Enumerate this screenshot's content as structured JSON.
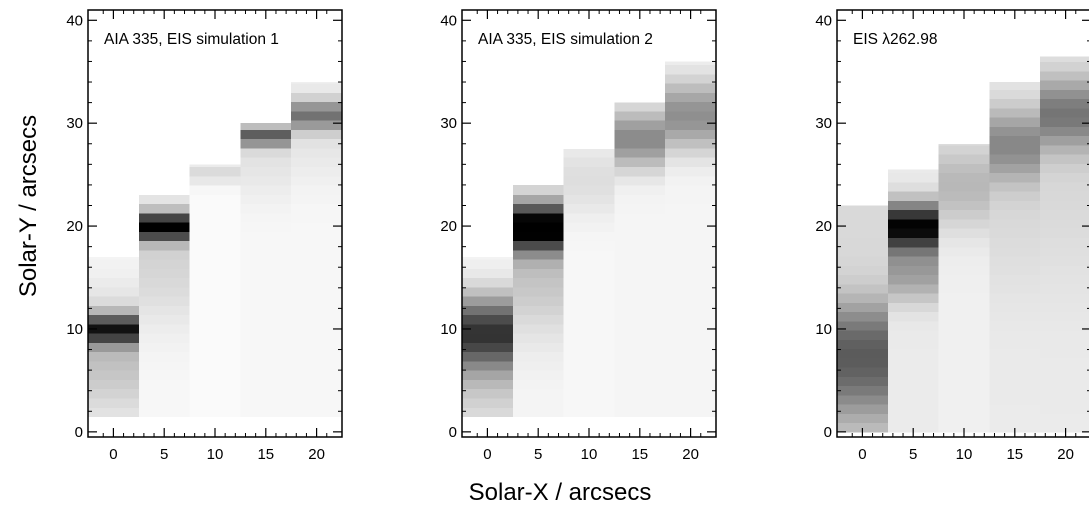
{
  "figure": {
    "xlabel": "Solar-X / arcsecs",
    "ylabel": "Solar-Y / arcsecs"
  },
  "chart_data": [
    {
      "type": "heatmap",
      "title": "AIA 335, EIS simulation 1",
      "x_ticks": [
        0,
        5,
        10,
        15,
        20
      ],
      "y_ticks": [
        0,
        10,
        20,
        30,
        40
      ],
      "xlim": [
        -2.5,
        22.5
      ],
      "ylim": [
        -0.5,
        41
      ],
      "colormap": "white-to-black",
      "columns": [
        {
          "x": 0,
          "y_start": 1.5,
          "y_end": 17,
          "bg": 0.03,
          "peaks": [
            {
              "y": 10,
              "width": 1.0,
              "amp": 0.72
            },
            {
              "y": 7.5,
              "width": 4.0,
              "amp": 0.22
            }
          ]
        },
        {
          "x": 5,
          "y_start": 1.5,
          "y_end": 23,
          "bg": 0.03,
          "peaks": [
            {
              "y": 20,
              "width": 0.9,
              "amp": 0.95
            },
            {
              "y": 17,
              "width": 4.5,
              "amp": 0.14
            }
          ]
        },
        {
          "x": 10,
          "y_start": 1.5,
          "y_end": 26,
          "bg": 0.02,
          "peaks": [
            {
              "y": 25.3,
              "width": 0.8,
              "amp": 0.12
            }
          ]
        },
        {
          "x": 15,
          "y_start": 1.5,
          "y_end": 30,
          "bg": 0.03,
          "peaks": [
            {
              "y": 28.8,
              "width": 0.7,
              "amp": 0.55
            },
            {
              "y": 27,
              "width": 3.0,
              "amp": 0.08
            }
          ]
        },
        {
          "x": 20,
          "y_start": 1.5,
          "y_end": 34,
          "bg": 0.03,
          "peaks": [
            {
              "y": 30.8,
              "width": 1.0,
              "amp": 0.45
            },
            {
              "y": 29.5,
              "width": 3.5,
              "amp": 0.08
            }
          ]
        }
      ]
    },
    {
      "type": "heatmap",
      "title": "AIA 335, EIS simulation 2",
      "x_ticks": [
        0,
        5,
        10,
        15,
        20
      ],
      "y_ticks": [
        0,
        10,
        20,
        30,
        40
      ],
      "xlim": [
        -2.5,
        22.5
      ],
      "ylim": [
        -0.5,
        41
      ],
      "colormap": "white-to-black",
      "columns": [
        {
          "x": 0,
          "y_start": 1.5,
          "y_end": 17,
          "bg": 0.04,
          "peaks": [
            {
              "y": 9.8,
              "width": 2.4,
              "amp": 0.65
            },
            {
              "y": 6,
              "width": 4.0,
              "amp": 0.18
            }
          ]
        },
        {
          "x": 5,
          "y_start": 1.5,
          "y_end": 24,
          "bg": 0.04,
          "peaks": [
            {
              "y": 20,
              "width": 1.6,
              "amp": 0.95
            },
            {
              "y": 16,
              "width": 4.5,
              "amp": 0.2
            }
          ]
        },
        {
          "x": 10,
          "y_start": 1.5,
          "y_end": 27.5,
          "bg": 0.03,
          "peaks": [
            {
              "y": 24.5,
              "width": 2.5,
              "amp": 0.1
            }
          ]
        },
        {
          "x": 15,
          "y_start": 1.5,
          "y_end": 32,
          "bg": 0.04,
          "peaks": [
            {
              "y": 28.5,
              "width": 2.0,
              "amp": 0.42
            }
          ]
        },
        {
          "x": 20,
          "y_start": 1.5,
          "y_end": 36,
          "bg": 0.04,
          "peaks": [
            {
              "y": 30.8,
              "width": 2.4,
              "amp": 0.4
            }
          ]
        }
      ]
    },
    {
      "type": "heatmap",
      "title": "EIS λ262.98",
      "x_ticks": [
        0,
        5,
        10,
        15,
        20
      ],
      "y_ticks": [
        0,
        10,
        20,
        30,
        40
      ],
      "xlim": [
        -2.5,
        22.5
      ],
      "ylim": [
        -0.5,
        41
      ],
      "colormap": "white-to-black",
      "columns": [
        {
          "x": 0,
          "y_start": 0,
          "y_end": 22,
          "bg": 0.15,
          "peaks": [
            {
              "y": 6,
              "width": 3.5,
              "amp": 0.42
            },
            {
              "y": 10,
              "width": 2.5,
              "amp": 0.18
            }
          ]
        },
        {
          "x": 5,
          "y_start": 0,
          "y_end": 25.5,
          "bg": 0.08,
          "peaks": [
            {
              "y": 20,
              "width": 1.6,
              "amp": 0.9
            },
            {
              "y": 15.5,
              "width": 2.0,
              "amp": 0.3
            }
          ]
        },
        {
          "x": 10,
          "y_start": 0,
          "y_end": 28,
          "bg": 0.06,
          "peaks": [
            {
              "y": 24,
              "width": 3.0,
              "amp": 0.22
            }
          ]
        },
        {
          "x": 15,
          "y_start": 0,
          "y_end": 34,
          "bg": 0.08,
          "peaks": [
            {
              "y": 28,
              "width": 2.5,
              "amp": 0.35
            },
            {
              "y": 22,
              "width": 6.0,
              "amp": 0.07
            }
          ]
        },
        {
          "x": 20,
          "y_start": 0,
          "y_end": 36.5,
          "bg": 0.08,
          "peaks": [
            {
              "y": 31,
              "width": 2.5,
              "amp": 0.42
            },
            {
              "y": 24,
              "width": 7.0,
              "amp": 0.07
            }
          ]
        }
      ]
    }
  ]
}
